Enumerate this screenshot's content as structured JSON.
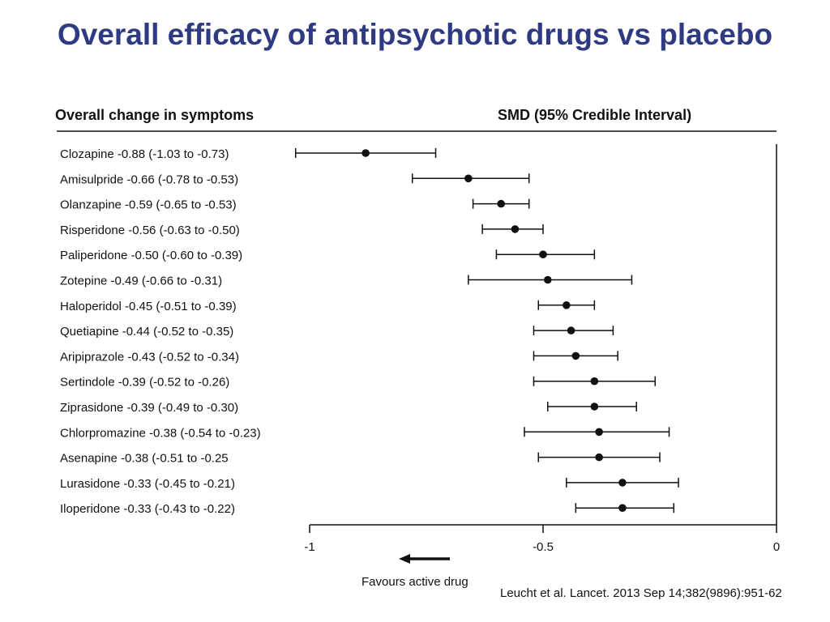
{
  "title": "Overall efficacy of antipsychotic drugs vs placebo",
  "left_header": "Overall change in symptoms",
  "right_header": "SMD (95% Credible Interval)",
  "favours_label": "Favours active drug",
  "citation": "Leucht et al. Lancet. 2013 Sep 14;382(9896):951-62",
  "colors": {
    "title": "#2e3b82",
    "marks": "#111111"
  },
  "chart_data": {
    "type": "forest",
    "x_range": [
      -1,
      0
    ],
    "x_ticks": [
      -1,
      -0.5,
      0
    ],
    "x_tick_labels": [
      "-1",
      "-0.5",
      "0"
    ],
    "rows": [
      {
        "label": "Clozapine -0.88 (-1.03 to -0.73)",
        "est": -0.88,
        "lo": -1.03,
        "hi": -0.73
      },
      {
        "label": "Amisulpride -0.66 (-0.78 to -0.53)",
        "est": -0.66,
        "lo": -0.78,
        "hi": -0.53
      },
      {
        "label": "Olanzapine -0.59 (-0.65 to -0.53)",
        "est": -0.59,
        "lo": -0.65,
        "hi": -0.53
      },
      {
        "label": "Risperidone -0.56 (-0.63 to -0.50)",
        "est": -0.56,
        "lo": -0.63,
        "hi": -0.5
      },
      {
        "label": "Paliperidone -0.50 (-0.60 to -0.39)",
        "est": -0.5,
        "lo": -0.6,
        "hi": -0.39
      },
      {
        "label": "Zotepine -0.49 (-0.66 to -0.31)",
        "est": -0.49,
        "lo": -0.66,
        "hi": -0.31
      },
      {
        "label": "Haloperidol -0.45 (-0.51 to -0.39)",
        "est": -0.45,
        "lo": -0.51,
        "hi": -0.39
      },
      {
        "label": "Quetiapine -0.44 (-0.52 to -0.35)",
        "est": -0.44,
        "lo": -0.52,
        "hi": -0.35
      },
      {
        "label": "Aripiprazole -0.43 (-0.52 to -0.34)",
        "est": -0.43,
        "lo": -0.52,
        "hi": -0.34
      },
      {
        "label": "Sertindole -0.39 (-0.52 to -0.26)",
        "est": -0.39,
        "lo": -0.52,
        "hi": -0.26
      },
      {
        "label": "Ziprasidone -0.39 (-0.49 to -0.30)",
        "est": -0.39,
        "lo": -0.49,
        "hi": -0.3
      },
      {
        "label": "Chlorpromazine -0.38 (-0.54 to -0.23)",
        "est": -0.38,
        "lo": -0.54,
        "hi": -0.23
      },
      {
        "label": "Asenapine -0.38 (-0.51 to -0.25",
        "est": -0.38,
        "lo": -0.51,
        "hi": -0.25
      },
      {
        "label": "Lurasidone -0.33 (-0.45 to -0.21)",
        "est": -0.33,
        "lo": -0.45,
        "hi": -0.21
      },
      {
        "label": "Iloperidone -0.33 (-0.43 to -0.22)",
        "est": -0.33,
        "lo": -0.43,
        "hi": -0.22
      }
    ]
  }
}
